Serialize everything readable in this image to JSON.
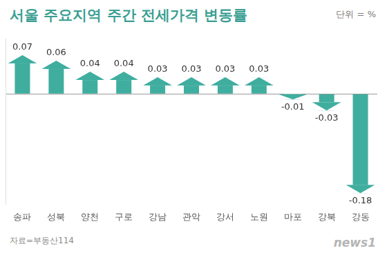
{
  "chart_data": {
    "type": "bar",
    "title": "서울 주요지역 주간 전세가격 변동률",
    "unit": "단위 = %",
    "source": "자료=부동산114",
    "watermark": "news1",
    "categories": [
      "송파",
      "성북",
      "양천",
      "구로",
      "강남",
      "관악",
      "강서",
      "노원",
      "마포",
      "강북",
      "강동"
    ],
    "values": [
      0.07,
      0.06,
      0.04,
      0.04,
      0.03,
      0.03,
      0.03,
      0.03,
      -0.01,
      -0.03,
      -0.18
    ],
    "color": "#3fae9f",
    "ylim": [
      -0.2,
      0.1
    ],
    "yticks": [
      0
    ],
    "grid": true,
    "data_labels": true,
    "tick_labels": "x"
  }
}
